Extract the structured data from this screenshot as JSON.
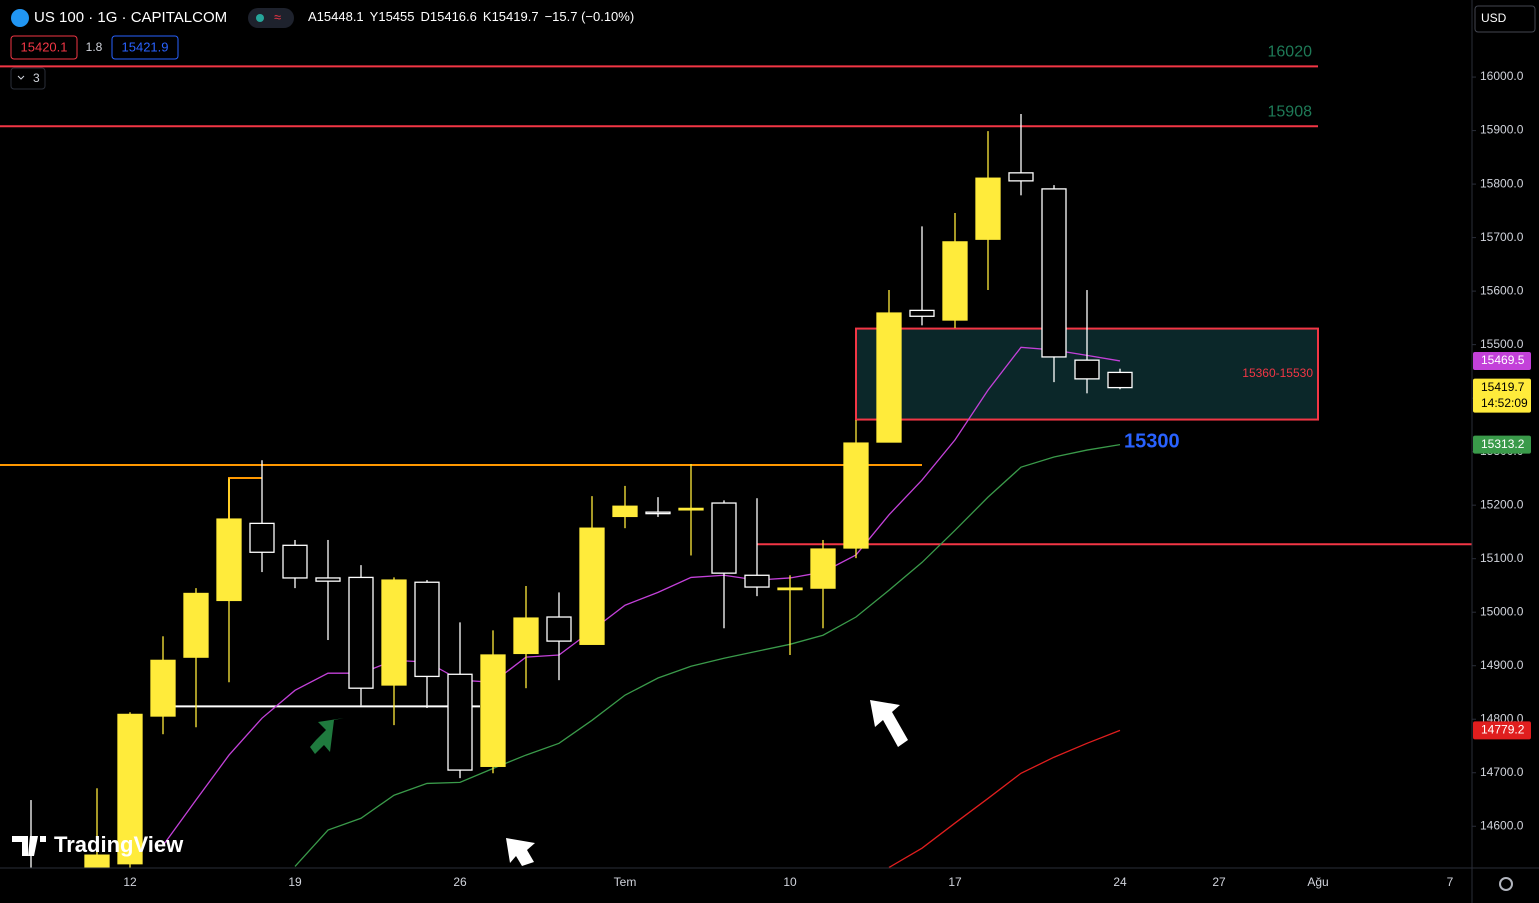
{
  "chart_data": {
    "type": "candlestick",
    "title": "US 100 · 1G · CAPITALCOM",
    "ohlc_prefixes": [
      "A",
      "Y",
      "D",
      "K"
    ],
    "change_label": "−15.7 (−0.10%)",
    "bid": 15420.1,
    "spread": 1.8,
    "ask": 15421.9,
    "indicator_count": "3",
    "currency": "USD",
    "countdown": "14:52:09",
    "watermark": "TradingView",
    "categories": [
      null,
      null,
      null,
      "12",
      null,
      null,
      null,
      null,
      "19",
      null,
      null,
      null,
      null,
      "26",
      null,
      null,
      null,
      null,
      "Tem",
      null,
      null,
      null,
      null,
      "10",
      null,
      null,
      null,
      null,
      "17",
      null,
      null,
      null,
      null,
      "24",
      null,
      null,
      "27",
      null,
      null,
      "Ağu",
      null,
      null,
      null,
      "7"
    ],
    "open": [
      14500,
      null,
      14500,
      14530,
      14806,
      14916,
      15022,
      15166,
      15125,
      15064,
      15065,
      14864,
      15056,
      14884,
      14712,
      14923,
      14991,
      14940,
      15179,
      15187,
      15194,
      15204,
      15069,
      15043,
      15045,
      15120,
      15318,
      15564,
      15546,
      15697,
      15821,
      15791,
      15471,
      15448.1,
      null,
      null,
      null,
      null,
      null,
      null,
      null,
      null,
      null,
      null
    ],
    "high": [
      14649,
      null,
      14671,
      14813,
      14955,
      15045,
      15250,
      15284,
      15135,
      15135,
      15088,
      15065,
      15060,
      14981,
      14966,
      15049,
      15037,
      15217,
      15236,
      15215,
      15277,
      15209,
      15213,
      15069,
      15135,
      15359,
      15602,
      15721,
      15746,
      15899,
      15931,
      15798,
      15602,
      15455.0,
      null,
      null,
      null,
      null,
      null,
      null,
      null,
      null,
      null,
      null
    ],
    "low": [
      14450,
      null,
      14480,
      14510,
      14772,
      14785,
      14869,
      15075,
      15045,
      14948,
      14826,
      14789,
      14821,
      14690,
      14699,
      14858,
      14873,
      14940,
      15157,
      15178,
      15106,
      14970,
      15030,
      14920,
      14970,
      15101,
      15318,
      15536,
      15531,
      15602,
      15779,
      15430,
      15409,
      15416.6,
      null,
      null,
      null,
      null,
      null,
      null,
      null,
      null,
      null,
      null
    ],
    "close": [
      14480,
      null,
      14546,
      14809,
      14910,
      15035,
      15174,
      15112,
      15064,
      15058,
      14858,
      15060,
      14880,
      14705,
      14920,
      14989,
      14946,
      15157,
      15198,
      15185,
      15194,
      15073,
      15047,
      15045,
      15118,
      15316,
      15559,
      15553,
      15692,
      15811,
      15806,
      15477,
      15436,
      15419.7,
      null,
      null,
      null,
      null,
      null,
      null,
      null,
      null,
      null,
      null
    ],
    "up_color": "#ffeb3b",
    "down_color": "#ffffff",
    "overlays": [
      {
        "color": "#c341d9",
        "values": [
          null,
          null,
          null,
          null,
          14564,
          14649,
          14733,
          14802,
          14854,
          14886,
          14886,
          14910,
          14907,
          14873,
          14869,
          14916,
          14920,
          14966,
          15013,
          15037,
          15065,
          15069,
          15060,
          15064,
          15075,
          15107,
          15182,
          15247,
          15322,
          15415,
          15495,
          15490,
          15480,
          15469.5,
          null,
          null,
          null,
          null,
          null,
          null,
          null,
          null,
          null,
          null
        ]
      },
      {
        "color": "#3a9a4a",
        "values": [
          null,
          null,
          null,
          null,
          null,
          null,
          null,
          null,
          14525,
          14593,
          14615,
          14658,
          14680,
          14682,
          14708,
          14733,
          14755,
          14798,
          14845,
          14877,
          14899,
          14914,
          14927,
          14940,
          14957,
          14991,
          15041,
          15093,
          15153,
          15215,
          15271,
          15290,
          15303,
          15313.2,
          null,
          null,
          null,
          null,
          null,
          null,
          null,
          null,
          null,
          null
        ]
      },
      {
        "color": "#e01e1e",
        "values": [
          null,
          null,
          null,
          null,
          null,
          null,
          null,
          null,
          null,
          null,
          null,
          null,
          null,
          null,
          null,
          null,
          null,
          null,
          null,
          null,
          null,
          null,
          null,
          null,
          null,
          null,
          14523,
          14559,
          14606,
          14652,
          14699,
          14729,
          14755,
          14779.2,
          null,
          null,
          null,
          null,
          null,
          null,
          null,
          null,
          null,
          null
        ]
      }
    ],
    "hlines": [
      {
        "value": 16020,
        "color": "#f23645",
        "show_label": true
      },
      {
        "value": 15908,
        "color": "#f23645",
        "show_label": true
      },
      {
        "value": 15275,
        "color": "#ff9800",
        "show_label": false
      },
      {
        "value": 14824,
        "color": "#ffffff",
        "show_label": false
      },
      {
        "value": 15127,
        "color": "#f23645",
        "show_label": false
      }
    ],
    "zone": {
      "low": 15360,
      "high": 15530,
      "label": "15360-15530",
      "color": "#f23645"
    },
    "annotation": {
      "text": "15300",
      "color": "#2962ff"
    },
    "ylim": [
      14522,
      16144
    ],
    "yticks": [
      {
        "value": 14600,
        "label": "14600.0"
      },
      {
        "value": 14700,
        "label": "14700.0"
      },
      {
        "value": 14800,
        "label": "14800.0"
      },
      {
        "value": 14900,
        "label": "14900.0"
      },
      {
        "value": 15000,
        "label": "15000.0"
      },
      {
        "value": 15100,
        "label": "15100.0"
      },
      {
        "value": 15200,
        "label": "15200.0"
      },
      {
        "value": 15300,
        "label": "15300.0"
      },
      {
        "value": 15400,
        "label": "15400.0"
      },
      {
        "value": 15500,
        "label": "15500.0"
      },
      {
        "value": 15600,
        "label": "15600.0"
      },
      {
        "value": 15700,
        "label": "15700.0"
      },
      {
        "value": 15800,
        "label": "15800.0"
      },
      {
        "value": 15900,
        "label": "15900.0"
      },
      {
        "value": 16000,
        "label": "16000.0"
      }
    ]
  }
}
